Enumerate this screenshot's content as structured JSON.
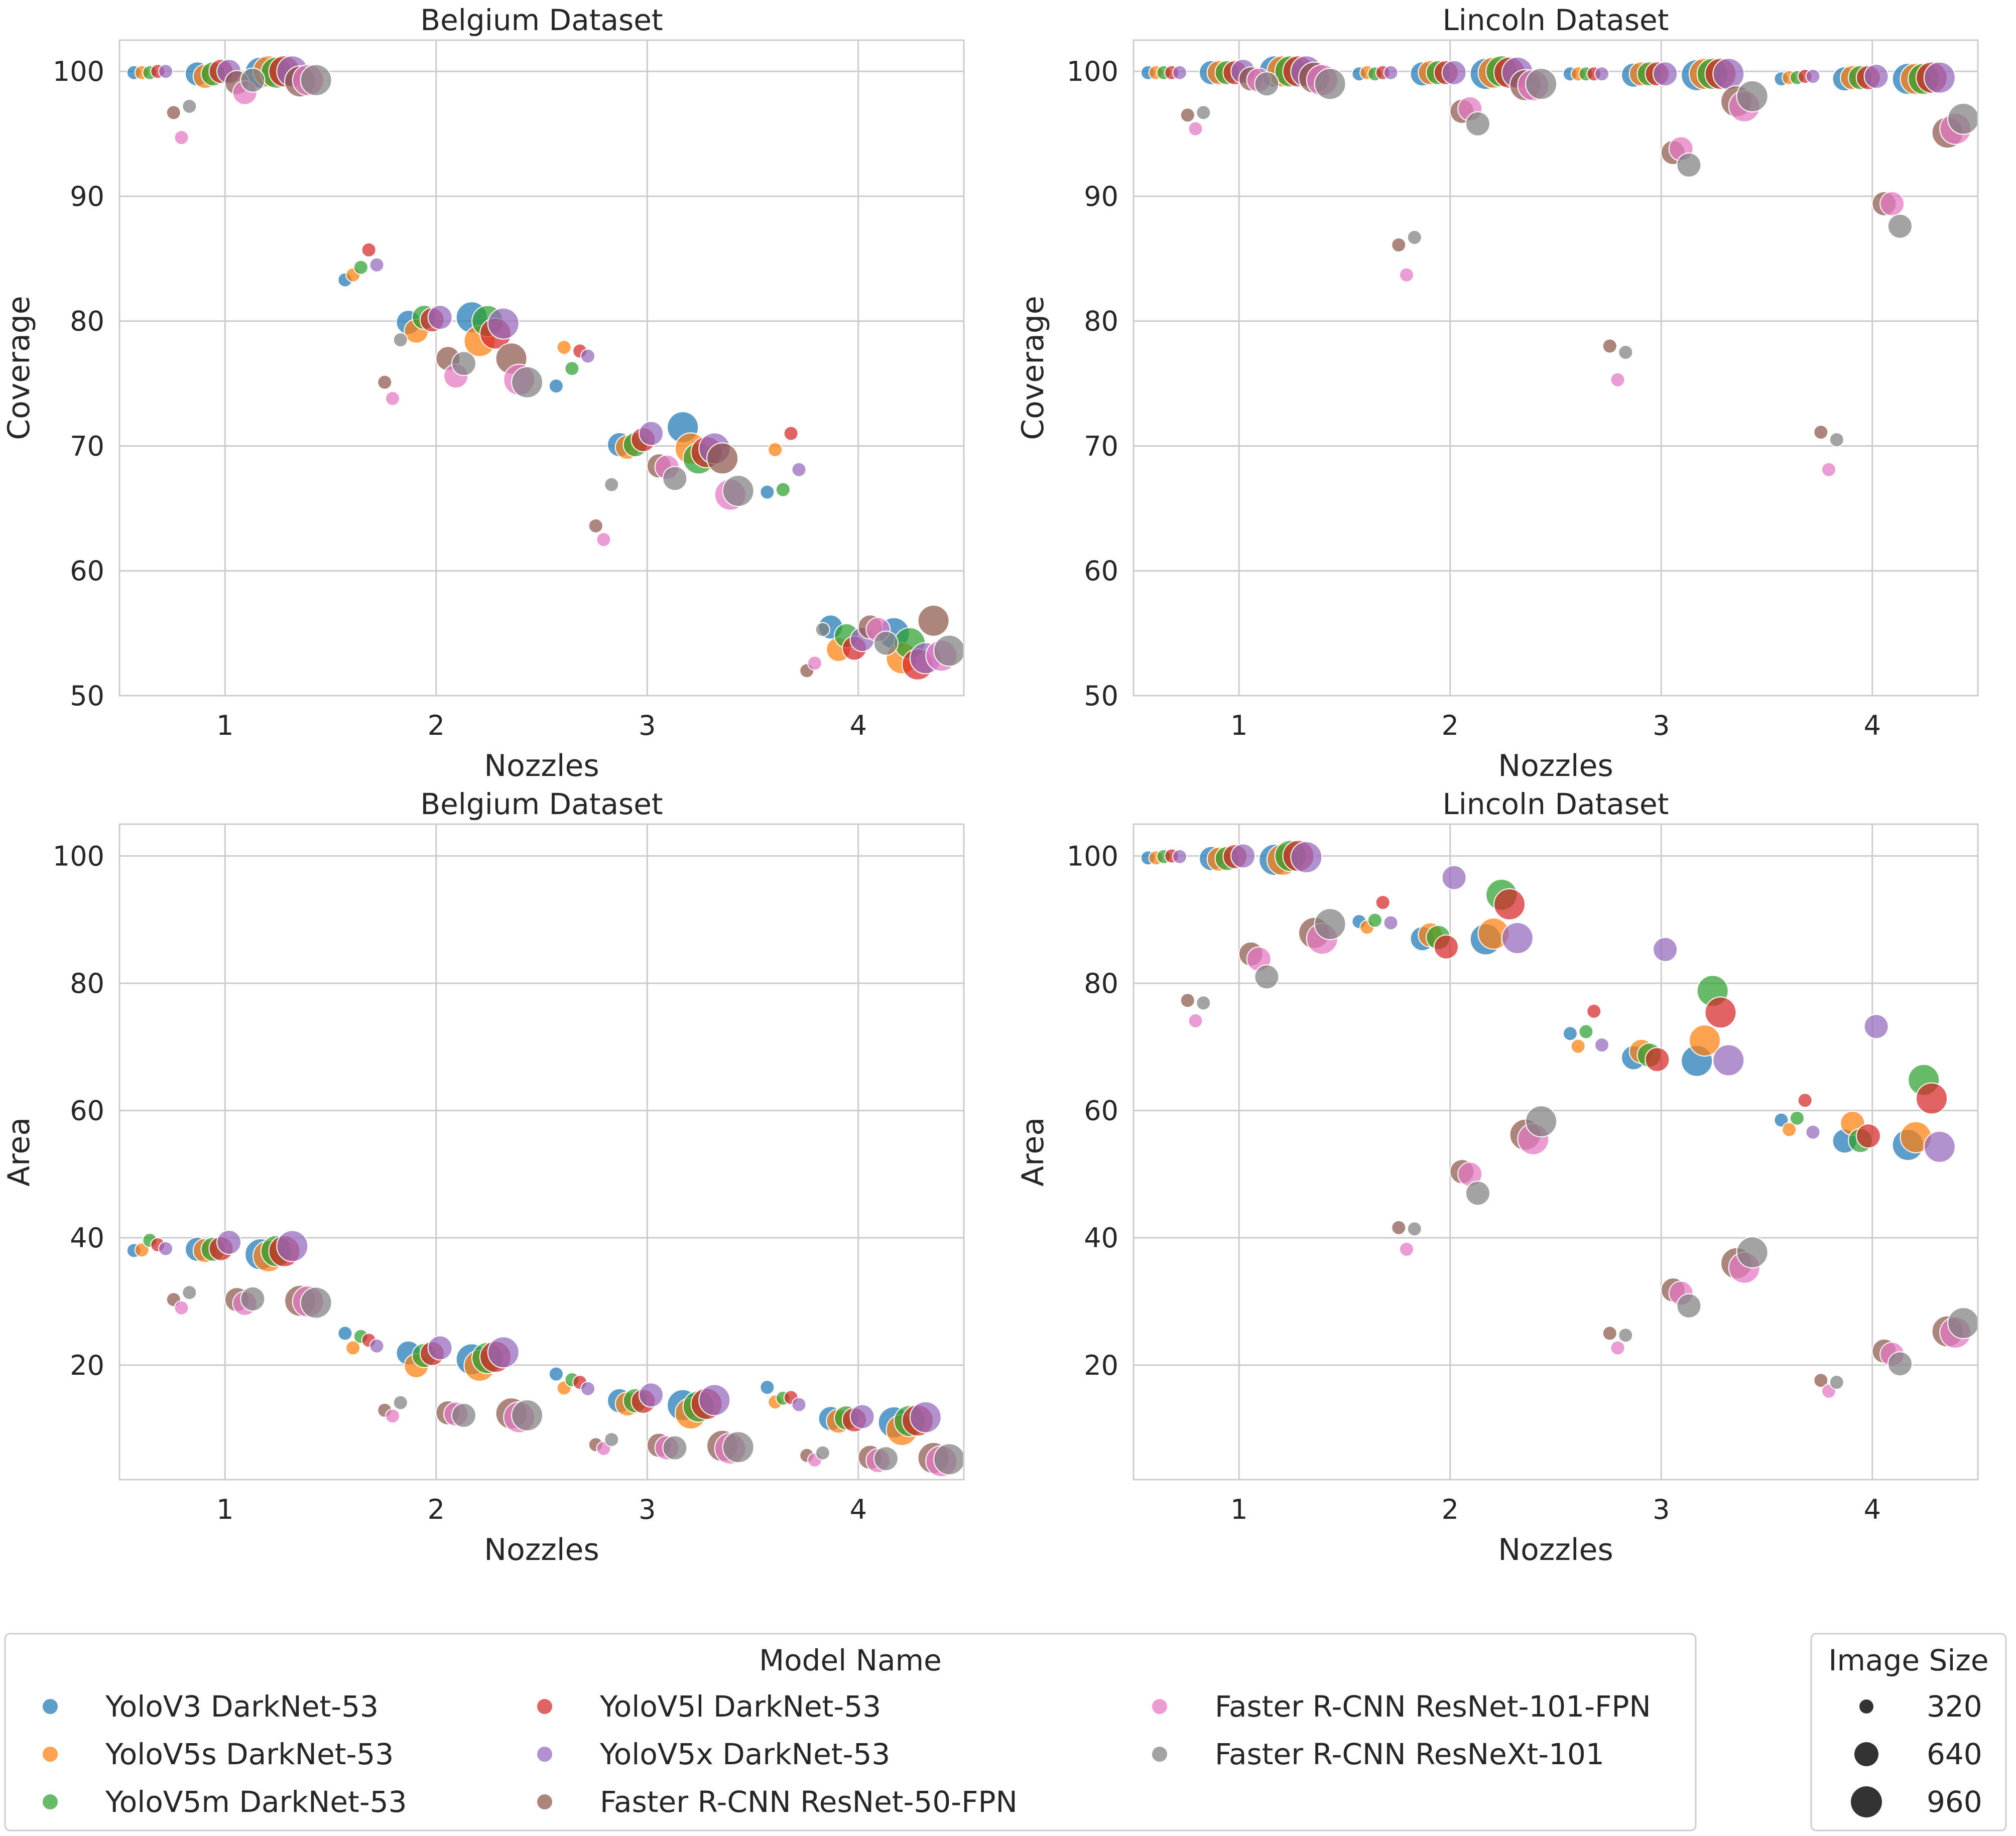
{
  "figure": {
    "legend_title": "Model Name",
    "size_legend_title": "Image Size"
  },
  "models": [
    {
      "name": "YoloV3 DarkNet-53",
      "color": "#1f77b4"
    },
    {
      "name": "YoloV5s DarkNet-53",
      "color": "#ff7f0e"
    },
    {
      "name": "YoloV5m DarkNet-53",
      "color": "#2ca02c"
    },
    {
      "name": "YoloV5l DarkNet-53",
      "color": "#d62728"
    },
    {
      "name": "YoloV5x DarkNet-53",
      "color": "#9467bd"
    },
    {
      "name": "Faster R-CNN ResNet-50-FPN",
      "color": "#8c564b"
    },
    {
      "name": "Faster R-CNN ResNet-101-FPN",
      "color": "#e377c2"
    },
    {
      "name": "Faster R-CNN ResNeXt-101",
      "color": "#7f7f7f"
    }
  ],
  "image_sizes": [
    "320",
    "640",
    "960"
  ],
  "chart_data": [
    {
      "type": "scatter",
      "title": "Belgium Dataset",
      "xlabel": "Nozzles",
      "ylabel": "Coverage",
      "categories": [
        "1",
        "2",
        "3",
        "4"
      ],
      "ylim": [
        50,
        102.5
      ],
      "yticks": [
        50,
        60,
        70,
        80,
        90,
        100
      ],
      "series": [
        {
          "name": "YoloV3 DarkNet-53",
          "values": {
            "320": [
              99.9,
              83.3,
              74.8,
              66.3
            ],
            "640": [
              99.8,
              79.9,
              70.1,
              55.5
            ],
            "960": [
              99.9,
              80.3,
              71.5,
              55.0
            ]
          }
        },
        {
          "name": "YoloV5s DarkNet-53",
          "values": {
            "320": [
              99.9,
              83.7,
              77.9,
              69.7
            ],
            "640": [
              99.6,
              79.2,
              69.9,
              53.7
            ],
            "960": [
              100.0,
              78.4,
              69.8,
              53.0
            ]
          }
        },
        {
          "name": "YoloV5m DarkNet-53",
          "values": {
            "320": [
              99.9,
              84.3,
              76.2,
              66.5
            ],
            "640": [
              99.8,
              80.3,
              70.1,
              54.8
            ],
            "960": [
              99.9,
              80.0,
              69.0,
              54.2
            ]
          }
        },
        {
          "name": "YoloV5l DarkNet-53",
          "values": {
            "320": [
              100.0,
              85.7,
              77.6,
              71.0
            ],
            "640": [
              100.0,
              80.1,
              70.5,
              53.8
            ],
            "960": [
              100.0,
              79.0,
              69.5,
              52.5
            ]
          }
        },
        {
          "name": "YoloV5x DarkNet-53",
          "values": {
            "320": [
              100.0,
              84.5,
              77.2,
              68.1
            ],
            "640": [
              100.0,
              80.3,
              71.0,
              54.5
            ],
            "960": [
              100.0,
              79.8,
              69.8,
              53.0
            ]
          }
        },
        {
          "name": "Faster R-CNN ResNet-50-FPN",
          "values": {
            "320": [
              96.7,
              75.1,
              63.6,
              52.0
            ],
            "640": [
              99.1,
              77.0,
              68.4,
              55.5
            ],
            "960": [
              99.2,
              77.0,
              69.0,
              56.0
            ]
          }
        },
        {
          "name": "Faster R-CNN ResNet-101-FPN",
          "values": {
            "320": [
              94.7,
              73.8,
              62.5,
              52.6
            ],
            "640": [
              98.3,
              75.6,
              68.3,
              55.3
            ],
            "960": [
              99.3,
              75.3,
              66.1,
              53.2
            ]
          }
        },
        {
          "name": "Faster R-CNN ResNeXt-101",
          "values": {
            "320": [
              97.2,
              78.5,
              66.9,
              55.3
            ],
            "640": [
              99.3,
              76.6,
              67.4,
              54.2
            ],
            "960": [
              99.3,
              75.1,
              66.4,
              53.6
            ]
          }
        }
      ]
    },
    {
      "type": "scatter",
      "title": "Lincoln Dataset",
      "xlabel": "Nozzles",
      "ylabel": "Coverage",
      "categories": [
        "1",
        "2",
        "3",
        "4"
      ],
      "ylim": [
        50,
        102.5
      ],
      "yticks": [
        50,
        60,
        70,
        80,
        90,
        100
      ],
      "series": [
        {
          "name": "YoloV3 DarkNet-53",
          "values": {
            "320": [
              99.9,
              99.8,
              99.8,
              99.4
            ],
            "640": [
              99.9,
              99.8,
              99.7,
              99.4
            ],
            "960": [
              100.0,
              99.8,
              99.7,
              99.4
            ]
          }
        },
        {
          "name": "YoloV5s DarkNet-53",
          "values": {
            "320": [
              99.9,
              99.9,
              99.8,
              99.5
            ],
            "640": [
              99.9,
              99.9,
              99.8,
              99.5
            ],
            "960": [
              100.0,
              99.9,
              99.8,
              99.4
            ]
          }
        },
        {
          "name": "YoloV5m DarkNet-53",
          "values": {
            "320": [
              99.9,
              99.8,
              99.8,
              99.5
            ],
            "640": [
              99.9,
              99.9,
              99.8,
              99.5
            ],
            "960": [
              100.0,
              100.0,
              99.8,
              99.4
            ]
          }
        },
        {
          "name": "YoloV5l DarkNet-53",
          "values": {
            "320": [
              99.9,
              99.9,
              99.8,
              99.6
            ],
            "640": [
              99.9,
              99.9,
              99.8,
              99.5
            ],
            "960": [
              100.0,
              99.9,
              99.8,
              99.5
            ]
          }
        },
        {
          "name": "YoloV5x DarkNet-53",
          "values": {
            "320": [
              99.9,
              99.9,
              99.8,
              99.6
            ],
            "640": [
              100.0,
              99.9,
              99.8,
              99.6
            ],
            "960": [
              100.0,
              99.9,
              99.8,
              99.5
            ]
          }
        },
        {
          "name": "Faster R-CNN ResNet-50-FPN",
          "values": {
            "320": [
              96.5,
              86.1,
              78.0,
              71.1
            ],
            "640": [
              99.4,
              96.8,
              93.5,
              89.4
            ],
            "960": [
              99.5,
              98.9,
              97.6,
              95.1
            ]
          }
        },
        {
          "name": "Faster R-CNN ResNet-101-FPN",
          "values": {
            "320": [
              95.4,
              83.7,
              75.3,
              68.1
            ],
            "640": [
              99.3,
              97.0,
              93.8,
              89.4
            ],
            "960": [
              99.3,
              98.9,
              97.2,
              95.4
            ]
          }
        },
        {
          "name": "Faster R-CNN ResNeXt-101",
          "values": {
            "320": [
              96.7,
              86.7,
              77.5,
              70.5
            ],
            "640": [
              99.0,
              95.8,
              92.5,
              87.6
            ],
            "960": [
              99.0,
              99.0,
              98.0,
              96.2
            ]
          }
        }
      ]
    },
    {
      "type": "scatter",
      "title": "Belgium Dataset",
      "xlabel": "Nozzles",
      "ylabel": "Area",
      "categories": [
        "1",
        "2",
        "3",
        "4"
      ],
      "ylim": [
        2,
        105
      ],
      "yticks": [
        20,
        40,
        60,
        80,
        100
      ],
      "series": [
        {
          "name": "YoloV3 DarkNet-53",
          "values": {
            "320": [
              38.0,
              25.0,
              18.6,
              16.5
            ],
            "640": [
              38.2,
              21.9,
              14.4,
              11.6
            ],
            "960": [
              37.4,
              20.9,
              13.7,
              11.0
            ]
          }
        },
        {
          "name": "YoloV5s DarkNet-53",
          "values": {
            "320": [
              38.1,
              22.7,
              16.4,
              14.2
            ],
            "640": [
              38.0,
              19.9,
              13.9,
              11.2
            ],
            "960": [
              37.1,
              19.9,
              12.4,
              9.8
            ]
          }
        },
        {
          "name": "YoloV5m DarkNet-53",
          "values": {
            "320": [
              39.6,
              24.5,
              17.7,
              14.8
            ],
            "640": [
              38.2,
              21.5,
              14.4,
              11.7
            ],
            "960": [
              37.9,
              21.1,
              13.5,
              11.2
            ]
          }
        },
        {
          "name": "YoloV5l DarkNet-53",
          "values": {
            "320": [
              38.9,
              23.9,
              17.3,
              14.9
            ],
            "640": [
              38.3,
              21.8,
              14.3,
              11.4
            ],
            "960": [
              37.9,
              21.3,
              13.9,
              11.3
            ]
          }
        },
        {
          "name": "YoloV5x DarkNet-53",
          "values": {
            "320": [
              38.3,
              23.0,
              16.3,
              13.8
            ],
            "640": [
              39.3,
              22.7,
              15.3,
              11.9
            ],
            "960": [
              38.7,
              22.0,
              14.5,
              11.8
            ]
          }
        },
        {
          "name": "Faster R-CNN ResNet-50-FPN",
          "values": {
            "320": [
              30.3,
              12.9,
              7.5,
              5.8
            ],
            "640": [
              30.3,
              12.5,
              7.4,
              5.5
            ],
            "960": [
              30.1,
              12.4,
              7.3,
              5.4
            ]
          }
        },
        {
          "name": "Faster R-CNN ResNet-101-FPN",
          "values": {
            "320": [
              29.0,
              12.0,
              6.9,
              5.1
            ],
            "640": [
              29.7,
              12.3,
              7.0,
              5.0
            ],
            "960": [
              30.0,
              11.8,
              6.9,
              4.9
            ]
          }
        },
        {
          "name": "Faster R-CNN ResNeXt-101",
          "values": {
            "320": [
              31.4,
              14.1,
              8.3,
              6.2
            ],
            "640": [
              30.4,
              12.1,
              7.0,
              5.3
            ],
            "960": [
              29.8,
              12.1,
              7.1,
              5.2
            ]
          }
        }
      ]
    },
    {
      "type": "scatter",
      "title": "Lincoln Dataset",
      "xlabel": "Nozzles",
      "ylabel": "Area",
      "categories": [
        "1",
        "2",
        "3",
        "4"
      ],
      "ylim": [
        2,
        105
      ],
      "yticks": [
        20,
        40,
        60,
        80,
        100
      ],
      "series": [
        {
          "name": "YoloV3 DarkNet-53",
          "values": {
            "320": [
              99.7,
              89.7,
              72.1,
              58.5
            ],
            "640": [
              99.6,
              87.0,
              68.3,
              55.2
            ],
            "960": [
              99.4,
              86.9,
              67.8,
              54.6
            ]
          }
        },
        {
          "name": "YoloV5s DarkNet-53",
          "values": {
            "320": [
              99.7,
              88.8,
              70.1,
              57.0
            ],
            "640": [
              99.5,
              87.6,
              69.3,
              58.0
            ],
            "960": [
              99.4,
              87.8,
              71.0,
              55.8
            ]
          }
        },
        {
          "name": "YoloV5m DarkNet-53",
          "values": {
            "320": [
              99.9,
              89.9,
              72.4,
              58.8
            ],
            "640": [
              99.6,
              87.2,
              68.7,
              55.3
            ],
            "960": [
              100.0,
              93.9,
              78.8,
              64.8
            ]
          }
        },
        {
          "name": "YoloV5l DarkNet-53",
          "values": {
            "320": [
              100.0,
              92.7,
              75.6,
              61.6
            ],
            "640": [
              99.9,
              85.7,
              68.0,
              56.0
            ],
            "960": [
              100.0,
              92.4,
              75.4,
              61.9
            ]
          }
        },
        {
          "name": "YoloV5x DarkNet-53",
          "values": {
            "320": [
              99.9,
              89.5,
              70.3,
              56.6
            ],
            "640": [
              100.0,
              96.6,
              85.3,
              73.2
            ],
            "960": [
              99.8,
              87.1,
              67.9,
              54.3
            ]
          }
        },
        {
          "name": "Faster R-CNN ResNet-50-FPN",
          "values": {
            "320": [
              77.3,
              41.6,
              25.0,
              17.6
            ],
            "640": [
              84.6,
              50.4,
              31.8,
              22.2
            ],
            "960": [
              87.9,
              56.2,
              36.0,
              25.3
            ]
          }
        },
        {
          "name": "Faster R-CNN ResNet-101-FPN",
          "values": {
            "320": [
              74.1,
              38.2,
              22.7,
              15.9
            ],
            "640": [
              83.8,
              50.0,
              31.3,
              21.7
            ],
            "960": [
              87.0,
              55.5,
              35.3,
              25.1
            ]
          }
        },
        {
          "name": "Faster R-CNN ResNeXt-101",
          "values": {
            "320": [
              76.9,
              41.4,
              24.7,
              17.3
            ],
            "640": [
              81.0,
              47.0,
              29.3,
              20.2
            ],
            "960": [
              89.3,
              58.3,
              37.7,
              26.6
            ]
          }
        }
      ]
    }
  ]
}
